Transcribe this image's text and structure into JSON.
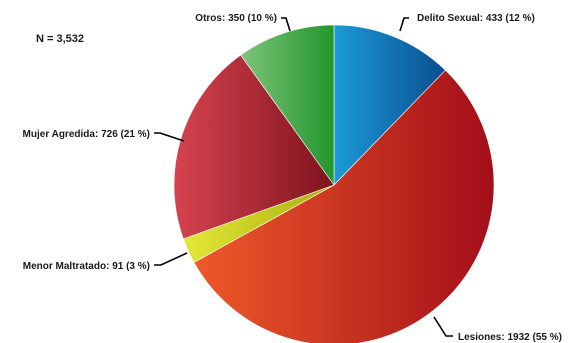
{
  "chart_data": {
    "type": "pie",
    "annotation": "N = 3,532",
    "slices": [
      {
        "name": "Delito Sexual",
        "value": 433,
        "percent": "12 %",
        "label": "Delito Sexual: 433 (12 %)",
        "colors": [
          "#1b9ad6",
          "#0a4f8f"
        ]
      },
      {
        "name": "Lesiones",
        "value": 1932,
        "percent": "55 %",
        "label": "Lesiones: 1932 (55 %)",
        "colors": [
          "#ee5a28",
          "#a30e1a"
        ]
      },
      {
        "name": "Menor Maltratado",
        "value": 91,
        "percent": "3 %",
        "label": "Menor Maltratado: 91 (3 %)",
        "colors": [
          "#e3e838",
          "#a9b00c"
        ]
      },
      {
        "name": "Mujer Agredida",
        "value": 726,
        "percent": "21 %",
        "label": "Mujer Agredida: 726 (21 %)",
        "colors": [
          "#d6434f",
          "#7e131d"
        ]
      },
      {
        "name": "Otros",
        "value": 350,
        "percent": "10 %",
        "label": "Otros: 350 (10 %)",
        "colors": [
          "#7ec47a",
          "#22962c"
        ]
      }
    ]
  }
}
